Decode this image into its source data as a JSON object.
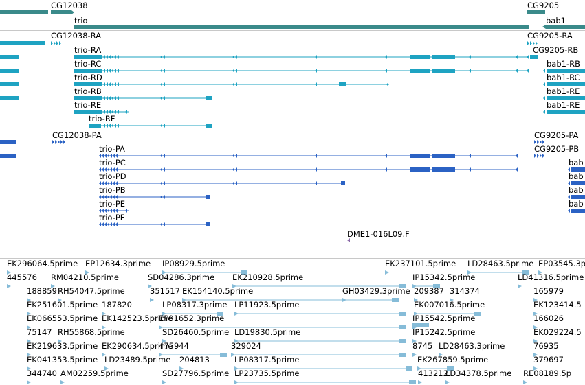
{
  "colors": {
    "gene": "#3a8a8a",
    "transcript": "#1ea3c2",
    "protein": "#2b62c4",
    "clone": "#8a6aa8",
    "est": "#86bcd8",
    "separator": "#c8c8c8",
    "text": "#000000"
  },
  "tracks": {
    "genes": {
      "labels": [
        "CG12038",
        "trio",
        "CG9205",
        "bab1"
      ]
    },
    "transcripts": {
      "labels": [
        "CG12038-RA",
        "trio-RA",
        "trio-RC",
        "trio-RD",
        "trio-RB",
        "trio-RE",
        "trio-RF",
        "CG9205-RA",
        "CG9205-RB",
        "bab1-RB",
        "bab1-RC",
        "bab1-RE",
        "bab1-RE"
      ]
    },
    "proteins": {
      "labels": [
        "CG12038-PA",
        "trio-PA",
        "trio-PC",
        "trio-PD",
        "trio-PB",
        "trio-PE",
        "trio-PF",
        "CG9205-PA",
        "CG9205-PB",
        "bab",
        "bab",
        "bab",
        "bab"
      ]
    },
    "clones": {
      "labels": [
        "DME1-016L09.F"
      ]
    },
    "ests": {
      "labels": [
        "EK296064.5prime",
        "EP12634.3prime",
        "IP08929.5prime",
        "EK237101.5prime",
        "LD28463.5prime",
        "EP03545.3p",
        "445576",
        "RM04210.5prime",
        "SD04286.3prime",
        "EK210928.5prime",
        "IP15342.5prime",
        "LD41316.5prime",
        "188859",
        "RH54047.5prime",
        "351517",
        "EK154140.5prime",
        "GH03429.3prime",
        "209387",
        "314374",
        "165979",
        "EK251601.5prime",
        "187820",
        "LP08317.3prime",
        "LP11923.5prime",
        "EK007016.5prime",
        "EK123414.5",
        "EK066553.5prime",
        "EK142523.5prime",
        "EP01652.3prime",
        "IP15542.5prime",
        "166026",
        "75147",
        "RH55868.5prime",
        "SD26460.5prime",
        "LD19830.5prime",
        "IP15242.5prime",
        "EK029224.5",
        "EK219633.5prime",
        "EK290634.5prime",
        "475944",
        "329024",
        "8745",
        "LD28463.3prime",
        "76935",
        "EK041353.5prime",
        "LD23489.5prime",
        "204813",
        "LP08317.5prime",
        "EK267859.5prime",
        "379697",
        "344740",
        "AM02259.5prime",
        "SD27796.5prime",
        "LP23735.5prime",
        "413212",
        "LD34378.5prime",
        "RE08189.5p"
      ]
    }
  }
}
